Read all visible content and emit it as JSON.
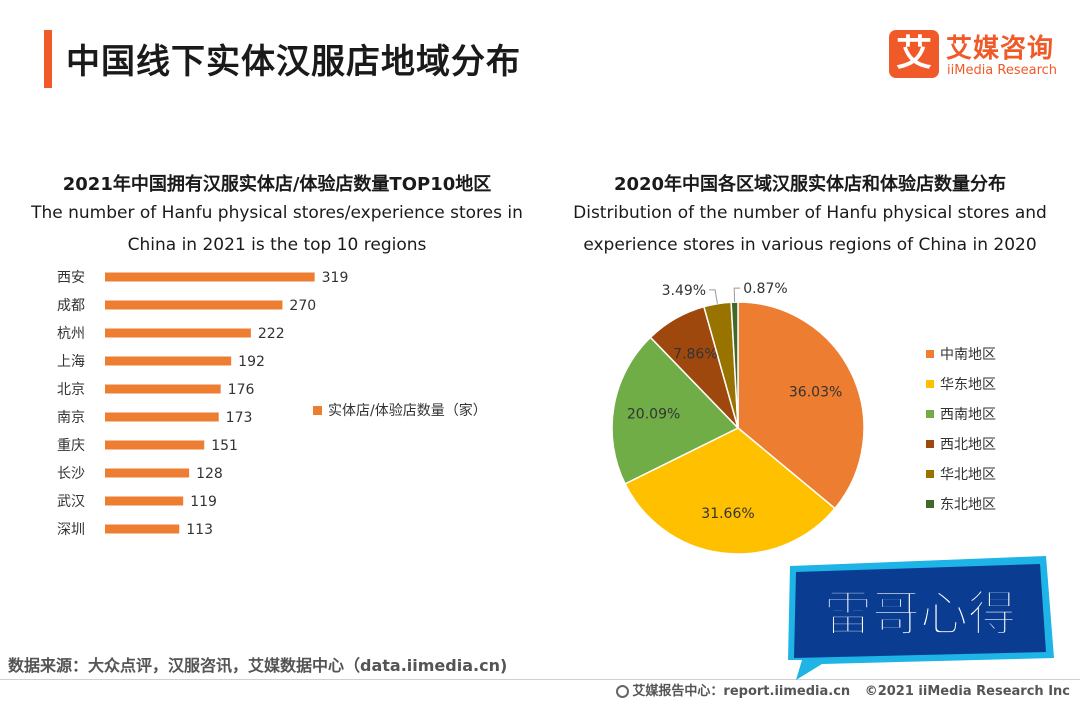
{
  "header": {
    "title": "中国线下实体汉服店地域分布"
  },
  "logo": {
    "mark": "艾",
    "name_cn": "艾媒咨询",
    "name_en": "iiMedia Research"
  },
  "colors": {
    "accent": "#f05a28",
    "bar": "#ed7d31",
    "pie": [
      "#ed7d31",
      "#ffc000",
      "#70ad47",
      "#9e480e",
      "#997300",
      "#43682b"
    ],
    "watermark_blue": "#0a3d91",
    "watermark_cyan": "#1eb4e6"
  },
  "chart_data": [
    {
      "type": "bar",
      "orientation": "horizontal",
      "title": "2021年中国拥有汉服实体店/体验店数量TOP10地区",
      "subtitle_lines": [
        "The number of Hanfu physical stores/experience stores in",
        "China in 2021 is the top 10 regions"
      ],
      "categories": [
        "西安",
        "成都",
        "杭州",
        "上海",
        "北京",
        "南京",
        "重庆",
        "长沙",
        "武汉",
        "深圳"
      ],
      "values": [
        319,
        270,
        222,
        192,
        176,
        173,
        151,
        128,
        119,
        113
      ],
      "xlim": [
        0,
        350
      ],
      "legend": "实体店/体验店数量（家）",
      "legend_position": "right"
    },
    {
      "type": "pie",
      "title": "2020年中国各区域汉服实体店和体验店数量分布",
      "subtitle_lines": [
        "Distribution of the number of Hanfu physical stores and",
        "experience stores in various regions of China in 2020"
      ],
      "labels": [
        "中南地区",
        "华东地区",
        "西南地区",
        "西北地区",
        "华北地区",
        "东北地区"
      ],
      "values": [
        36.03,
        31.66,
        20.09,
        7.86,
        3.49,
        0.87
      ],
      "value_labels": [
        "36.03%",
        "31.66%",
        "20.09%",
        "7.86%",
        "3.49%",
        "0.87%"
      ],
      "legend_position": "right"
    }
  ],
  "source": "数据来源：大众点评，汉服咨讯，艾媒数据中心（data.iimedia.cn)",
  "footer": {
    "report": "艾媒报告中心：report.iimedia.cn",
    "copyright": "©2021  iiMedia Research  Inc"
  },
  "watermark": {
    "text": "雷哥心得"
  }
}
